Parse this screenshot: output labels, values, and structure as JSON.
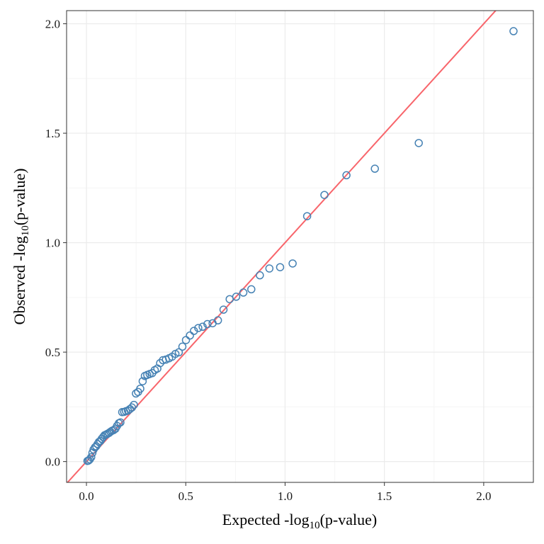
{
  "colors": {
    "point_stroke": "#4682b4",
    "reference_line": "#f8656b",
    "grid_major": "#ebebeb",
    "grid_minor": "#f5f5f5",
    "panel_border": "#333333",
    "background": "#ffffff"
  },
  "chart_data": {
    "type": "scatter",
    "title": "",
    "xlabel": {
      "prefix": "Expected -log",
      "subscript": "10",
      "suffix": "(p-value)"
    },
    "ylabel": {
      "prefix": "Observed -log",
      "subscript": "10",
      "suffix": "(p-value)"
    },
    "xlim": [
      -0.1,
      2.25
    ],
    "ylim": [
      -0.095,
      2.06
    ],
    "xticks": [
      0.0,
      0.5,
      1.0,
      1.5,
      2.0
    ],
    "xtick_labels": [
      "0.0",
      "0.5",
      "1.0",
      "1.5",
      "2.0"
    ],
    "yticks": [
      0.0,
      0.5,
      1.0,
      1.5,
      2.0
    ],
    "ytick_labels": [
      "0.0",
      "0.5",
      "1.0",
      "1.5",
      "2.0"
    ],
    "grid": true,
    "legend": "none",
    "reference_line": {
      "slope": 1,
      "intercept": 0
    },
    "series": [
      {
        "x": [
          2.15,
          1.673,
          1.452,
          1.309,
          1.198,
          1.111,
          1.038,
          0.975,
          0.921,
          0.873,
          0.83,
          0.79,
          0.754,
          0.721,
          0.69,
          0.662,
          0.635,
          0.609,
          0.585,
          0.563,
          0.541,
          0.521,
          0.501,
          0.483,
          0.465,
          0.448,
          0.431,
          0.416,
          0.4,
          0.385,
          0.371,
          0.357,
          0.344,
          0.331,
          0.318,
          0.306,
          0.294,
          0.283,
          0.271,
          0.26,
          0.249,
          0.239,
          0.229,
          0.219,
          0.209,
          0.199,
          0.19,
          0.18,
          0.171,
          0.163,
          0.154,
          0.146,
          0.137,
          0.129,
          0.121,
          0.114,
          0.106,
          0.098,
          0.091,
          0.084,
          0.077,
          0.07,
          0.063,
          0.056,
          0.049,
          0.043,
          0.036,
          0.03,
          0.024,
          0.017,
          0.011,
          0.005
        ],
        "y": [
          1.966,
          1.455,
          1.338,
          1.308,
          1.218,
          1.121,
          0.905,
          0.888,
          0.882,
          0.851,
          0.787,
          0.772,
          0.753,
          0.742,
          0.694,
          0.645,
          0.632,
          0.628,
          0.616,
          0.61,
          0.597,
          0.576,
          0.555,
          0.525,
          0.499,
          0.492,
          0.479,
          0.472,
          0.466,
          0.463,
          0.45,
          0.425,
          0.418,
          0.404,
          0.4,
          0.396,
          0.391,
          0.367,
          0.333,
          0.318,
          0.311,
          0.259,
          0.247,
          0.24,
          0.233,
          0.23,
          0.227,
          0.226,
          0.179,
          0.175,
          0.163,
          0.15,
          0.144,
          0.141,
          0.136,
          0.131,
          0.127,
          0.123,
          0.12,
          0.112,
          0.104,
          0.094,
          0.09,
          0.08,
          0.07,
          0.065,
          0.055,
          0.04,
          0.02,
          0.01,
          0.005,
          0.003
        ]
      }
    ]
  }
}
